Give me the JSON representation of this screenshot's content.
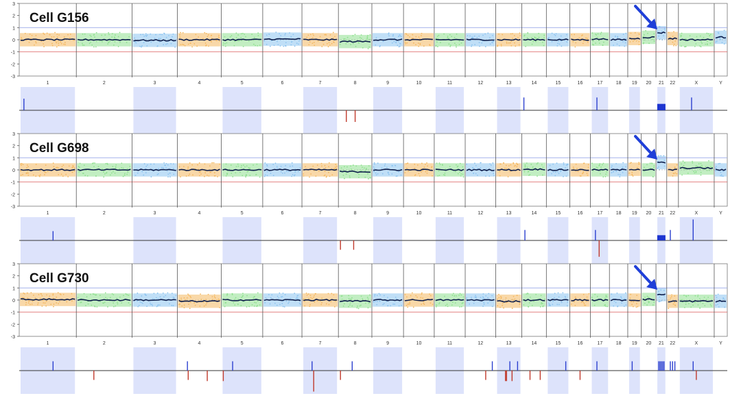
{
  "chart_data": {
    "type": "scatter",
    "description_free": true,
    "chromosomes": [
      "1",
      "2",
      "3",
      "4",
      "5",
      "6",
      "7",
      "8",
      "9",
      "10",
      "11",
      "12",
      "13",
      "14",
      "15",
      "16",
      "17",
      "18",
      "19",
      "20",
      "21",
      "22",
      "X",
      "Y"
    ],
    "chrom_relative_sizes": [
      249,
      243,
      198,
      191,
      181,
      171,
      159,
      146,
      138,
      134,
      135,
      133,
      114,
      107,
      102,
      90,
      83,
      80,
      59,
      64,
      47,
      51,
      156,
      57
    ],
    "ylim": [
      -3,
      3
    ],
    "yticks": [
      "3",
      "2",
      "1",
      "0",
      "-1",
      "-2",
      "-3"
    ],
    "band_colors": [
      "#f4b860",
      "#8fe08f",
      "#8cc4f0"
    ],
    "panels": [
      {
        "cell_label": "Cell G156",
        "arrow_target_chrom": "21",
        "segments": [
          {
            "chrom": "1",
            "value": 0.0
          },
          {
            "chrom": "2",
            "value": 0.0
          },
          {
            "chrom": "3",
            "value": -0.05
          },
          {
            "chrom": "4",
            "value": 0.0
          },
          {
            "chrom": "5",
            "value": 0.0
          },
          {
            "chrom": "6",
            "value": 0.05
          },
          {
            "chrom": "7",
            "value": 0.0
          },
          {
            "chrom": "8",
            "value": -0.15
          },
          {
            "chrom": "9",
            "value": 0.0
          },
          {
            "chrom": "10",
            "value": 0.0
          },
          {
            "chrom": "11",
            "value": 0.0
          },
          {
            "chrom": "12",
            "value": 0.0
          },
          {
            "chrom": "13",
            "value": 0.0
          },
          {
            "chrom": "14",
            "value": 0.0
          },
          {
            "chrom": "15",
            "value": 0.0
          },
          {
            "chrom": "16",
            "value": 0.0
          },
          {
            "chrom": "17",
            "value": 0.05
          },
          {
            "chrom": "18",
            "value": 0.0
          },
          {
            "chrom": "19",
            "value": 0.1
          },
          {
            "chrom": "20",
            "value": 0.2
          },
          {
            "chrom": "21",
            "value": 0.58
          },
          {
            "chrom": "22",
            "value": 0.1
          },
          {
            "chrom": "X",
            "value": 0.0
          },
          {
            "chrom": "Y",
            "value": 0.2
          }
        ],
        "events": [
          {
            "chrom": "1",
            "pos": 0.05,
            "dir": "gain",
            "h": 0.5
          },
          {
            "chrom": "8",
            "pos": 0.2,
            "dir": "loss",
            "h": 0.5
          },
          {
            "chrom": "8",
            "pos": 0.5,
            "dir": "loss",
            "h": 0.5
          },
          {
            "chrom": "14",
            "pos": 0.0,
            "dir": "gain",
            "h": 0.55
          },
          {
            "chrom": "17",
            "pos": 0.3,
            "dir": "gain",
            "h": 0.55
          },
          {
            "chrom": "21",
            "pos": 0.5,
            "dir": "gain",
            "h": 0.55,
            "block": true
          },
          {
            "chrom": "X",
            "pos": 0.35,
            "dir": "gain",
            "h": 0.55
          }
        ]
      },
      {
        "cell_label": "Cell G698",
        "arrow_target_chrom": "21",
        "segments": [
          {
            "chrom": "1",
            "value": 0.0
          },
          {
            "chrom": "2",
            "value": 0.0
          },
          {
            "chrom": "3",
            "value": 0.0
          },
          {
            "chrom": "4",
            "value": 0.0
          },
          {
            "chrom": "5",
            "value": 0.0
          },
          {
            "chrom": "6",
            "value": 0.0
          },
          {
            "chrom": "7",
            "value": 0.0
          },
          {
            "chrom": "8",
            "value": -0.15
          },
          {
            "chrom": "9",
            "value": 0.0
          },
          {
            "chrom": "10",
            "value": 0.0
          },
          {
            "chrom": "11",
            "value": 0.0
          },
          {
            "chrom": "12",
            "value": 0.0
          },
          {
            "chrom": "13",
            "value": 0.0
          },
          {
            "chrom": "14",
            "value": 0.05
          },
          {
            "chrom": "15",
            "value": 0.0
          },
          {
            "chrom": "16",
            "value": 0.0
          },
          {
            "chrom": "17",
            "value": 0.0
          },
          {
            "chrom": "18",
            "value": 0.0
          },
          {
            "chrom": "19",
            "value": 0.05
          },
          {
            "chrom": "20",
            "value": 0.0
          },
          {
            "chrom": "21",
            "value": 0.6
          },
          {
            "chrom": "22",
            "value": 0.0
          },
          {
            "chrom": "X",
            "value": 0.15
          },
          {
            "chrom": "Y",
            "value": 0.0
          }
        ],
        "events": [
          {
            "chrom": "1",
            "pos": 0.6,
            "dir": "gain",
            "h": 0.4
          },
          {
            "chrom": "8",
            "pos": 0.0,
            "dir": "loss",
            "h": 0.4
          },
          {
            "chrom": "8",
            "pos": 0.45,
            "dir": "loss",
            "h": 0.4
          },
          {
            "chrom": "14",
            "pos": 0.05,
            "dir": "gain",
            "h": 0.45
          },
          {
            "chrom": "17",
            "pos": 0.2,
            "dir": "gain",
            "h": 0.45
          },
          {
            "chrom": "17",
            "pos": 0.45,
            "dir": "loss",
            "h": 0.7
          },
          {
            "chrom": "21",
            "pos": 0.5,
            "dir": "gain",
            "h": 0.45,
            "block": true
          },
          {
            "chrom": "22",
            "pos": 0.2,
            "dir": "gain",
            "h": 0.45
          },
          {
            "chrom": "X",
            "pos": 0.4,
            "dir": "gain",
            "h": 0.9
          }
        ]
      },
      {
        "cell_label": "Cell G730",
        "arrow_target_chrom": "21",
        "segments": [
          {
            "chrom": "1",
            "value": 0.05
          },
          {
            "chrom": "2",
            "value": 0.0
          },
          {
            "chrom": "3",
            "value": 0.0
          },
          {
            "chrom": "4",
            "value": -0.1
          },
          {
            "chrom": "5",
            "value": 0.0
          },
          {
            "chrom": "6",
            "value": 0.0
          },
          {
            "chrom": "7",
            "value": 0.0
          },
          {
            "chrom": "8",
            "value": -0.1
          },
          {
            "chrom": "9",
            "value": 0.0
          },
          {
            "chrom": "10",
            "value": 0.0
          },
          {
            "chrom": "11",
            "value": 0.0
          },
          {
            "chrom": "12",
            "value": 0.0
          },
          {
            "chrom": "13",
            "value": -0.1
          },
          {
            "chrom": "14",
            "value": 0.0
          },
          {
            "chrom": "15",
            "value": 0.0
          },
          {
            "chrom": "16",
            "value": 0.0
          },
          {
            "chrom": "17",
            "value": 0.0
          },
          {
            "chrom": "18",
            "value": 0.0
          },
          {
            "chrom": "19",
            "value": 0.0
          },
          {
            "chrom": "20",
            "value": 0.05
          },
          {
            "chrom": "21",
            "value": 0.45
          },
          {
            "chrom": "22",
            "value": -0.1
          },
          {
            "chrom": "X",
            "value": -0.1
          },
          {
            "chrom": "Y",
            "value": -0.1
          }
        ],
        "events": [
          {
            "chrom": "1",
            "pos": 0.6,
            "dir": "gain",
            "h": 0.4
          },
          {
            "chrom": "2",
            "pos": 0.3,
            "dir": "loss",
            "h": 0.4
          },
          {
            "chrom": "4",
            "pos": 0.2,
            "dir": "gain",
            "h": 0.4
          },
          {
            "chrom": "4",
            "pos": 0.22,
            "dir": "loss",
            "h": 0.4
          },
          {
            "chrom": "4",
            "pos": 0.7,
            "dir": "loss",
            "h": 0.45
          },
          {
            "chrom": "5",
            "pos": 0.0,
            "dir": "loss",
            "h": 0.45
          },
          {
            "chrom": "5",
            "pos": 0.25,
            "dir": "gain",
            "h": 0.4
          },
          {
            "chrom": "7",
            "pos": 0.25,
            "dir": "gain",
            "h": 0.4
          },
          {
            "chrom": "7",
            "pos": 0.3,
            "dir": "loss",
            "h": 0.9
          },
          {
            "chrom": "8",
            "pos": 0.0,
            "dir": "loss",
            "h": 0.4
          },
          {
            "chrom": "8",
            "pos": 0.4,
            "dir": "gain",
            "h": 0.4
          },
          {
            "chrom": "12",
            "pos": 0.7,
            "dir": "loss",
            "h": 0.4
          },
          {
            "chrom": "12",
            "pos": 0.95,
            "dir": "gain",
            "h": 0.4
          },
          {
            "chrom": "13",
            "pos": 0.35,
            "dir": "loss",
            "h": 0.45
          },
          {
            "chrom": "13",
            "pos": 0.4,
            "dir": "loss",
            "h": 0.45
          },
          {
            "chrom": "13",
            "pos": 0.55,
            "dir": "gain",
            "h": 0.4
          },
          {
            "chrom": "13",
            "pos": 0.65,
            "dir": "loss",
            "h": 0.45
          },
          {
            "chrom": "13",
            "pos": 0.9,
            "dir": "gain",
            "h": 0.4
          },
          {
            "chrom": "14",
            "pos": 0.3,
            "dir": "loss",
            "h": 0.4
          },
          {
            "chrom": "14",
            "pos": 0.8,
            "dir": "loss",
            "h": 0.4
          },
          {
            "chrom": "15",
            "pos": 0.9,
            "dir": "gain",
            "h": 0.4
          },
          {
            "chrom": "16",
            "pos": 0.5,
            "dir": "loss",
            "h": 0.4
          },
          {
            "chrom": "17",
            "pos": 0.3,
            "dir": "gain",
            "h": 0.4
          },
          {
            "chrom": "19",
            "pos": 0.25,
            "dir": "gain",
            "h": 0.4
          },
          {
            "chrom": "21",
            "pos": 0.1,
            "dir": "gain",
            "h": 0.4
          },
          {
            "chrom": "21",
            "pos": 0.3,
            "dir": "gain",
            "h": 0.4
          },
          {
            "chrom": "21",
            "pos": 0.5,
            "dir": "gain",
            "h": 0.4
          },
          {
            "chrom": "21",
            "pos": 0.7,
            "dir": "gain",
            "h": 0.4
          },
          {
            "chrom": "21",
            "pos": 0.9,
            "dir": "gain",
            "h": 0.4
          },
          {
            "chrom": "22",
            "pos": 0.2,
            "dir": "gain",
            "h": 0.4
          },
          {
            "chrom": "22",
            "pos": 0.5,
            "dir": "gain",
            "h": 0.4
          },
          {
            "chrom": "22",
            "pos": 0.8,
            "dir": "gain",
            "h": 0.4
          },
          {
            "chrom": "X",
            "pos": 0.4,
            "dir": "gain",
            "h": 0.4
          },
          {
            "chrom": "X",
            "pos": 0.5,
            "dir": "loss",
            "h": 0.4
          }
        ]
      }
    ]
  }
}
